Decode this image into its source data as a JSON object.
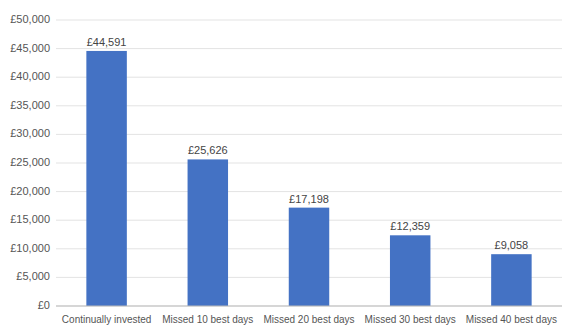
{
  "chart_data": {
    "type": "bar",
    "categories": [
      "Continually invested",
      "Missed 10 best days",
      "Missed 20 best days",
      "Missed 30 best days",
      "Missed 40 best days"
    ],
    "values": [
      44591,
      25626,
      17198,
      12359,
      9058
    ],
    "value_labels": [
      "£44,591",
      "£25,626",
      "£17,198",
      "£12,359",
      "£9,058"
    ],
    "data_labels": true,
    "color": "#4472C4",
    "ylim": [
      0,
      50000
    ],
    "yticks": [
      {
        "value": 0,
        "label": "£0"
      },
      {
        "value": 5000,
        "label": "£5,000"
      },
      {
        "value": 10000,
        "label": "£10,000"
      },
      {
        "value": 15000,
        "label": "£15,000"
      },
      {
        "value": 20000,
        "label": "£20,000"
      },
      {
        "value": 25000,
        "label": "£25,000"
      },
      {
        "value": 30000,
        "label": "£30,000"
      },
      {
        "value": 35000,
        "label": "£35,000"
      },
      {
        "value": 40000,
        "label": "£40,000"
      },
      {
        "value": 45000,
        "label": "£45,000"
      },
      {
        "value": 50000,
        "label": "£50,000"
      }
    ],
    "grid": true
  }
}
